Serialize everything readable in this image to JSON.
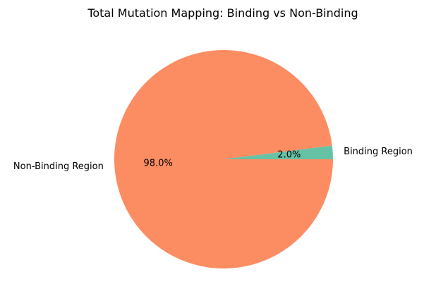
{
  "chart_data": {
    "type": "pie",
    "title": "Total Mutation Mapping: Binding vs Non-Binding",
    "slices": [
      {
        "label": "Binding Region",
        "value": 2.0,
        "pct_label": "2.0%",
        "color": "#66c2a5"
      },
      {
        "label": "Non-Binding Region",
        "value": 98.0,
        "pct_label": "98.0%",
        "color": "#fc8d62"
      }
    ],
    "start_angle_deg": 0,
    "direction": "counterclockwise",
    "legend": "none"
  }
}
